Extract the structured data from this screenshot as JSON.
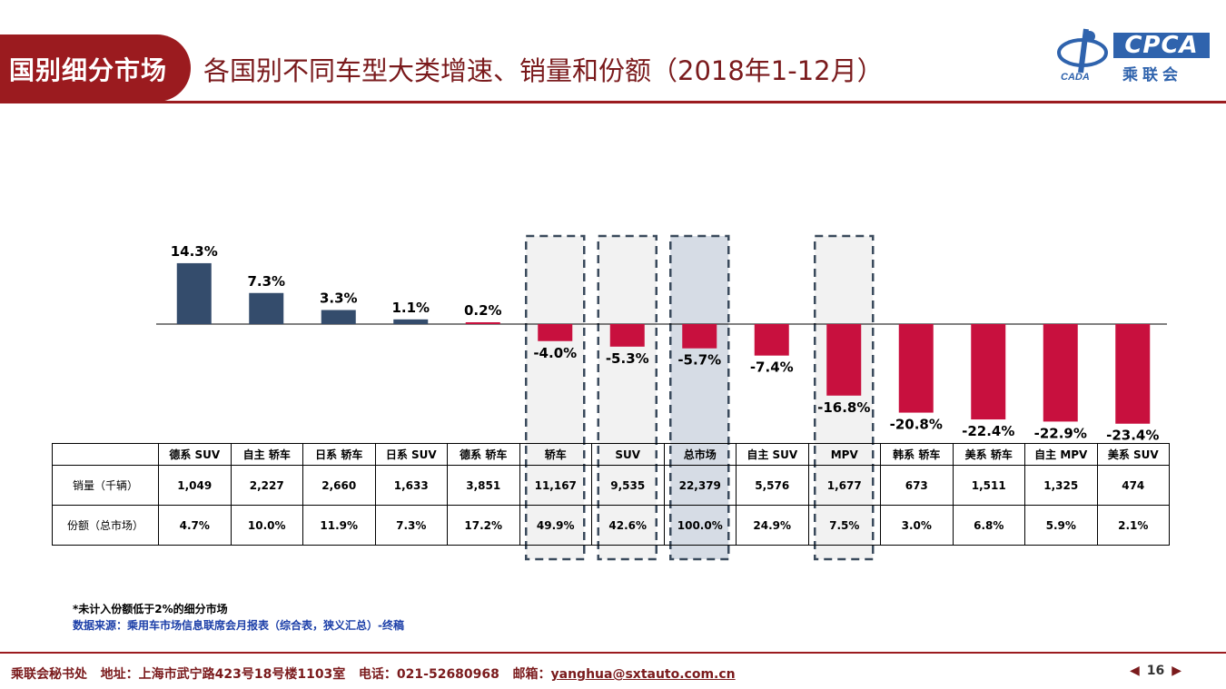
{
  "header": {
    "section_label": "国别细分市场",
    "title": "各国别不同车型大类增速、销量和份额（2018年1-12月）"
  },
  "logo": {
    "brand": "CPCA",
    "subtitle": "乘联会",
    "mark_text": "CADA"
  },
  "colors": {
    "accent": "#9b1b1f",
    "positive_bar": "#344c6c",
    "negative_bar": "#c8103e",
    "highlight_panel": "#f2f2f2",
    "highlight_panel_main": "#d6dce5"
  },
  "chart_data": {
    "type": "bar",
    "categories": [
      "德系 SUV",
      "自主 轿车",
      "日系 轿车",
      "日系 SUV",
      "德系 轿车",
      "轿车",
      "SUV",
      "总市场",
      "自主 SUV",
      "MPV",
      "韩系 轿车",
      "美系 轿车",
      "自主 MPV",
      "美系 SUV"
    ],
    "values": [
      14.3,
      7.3,
      3.3,
      1.1,
      0.2,
      -4.0,
      -5.3,
      -5.7,
      -7.4,
      -16.8,
      -20.8,
      -22.4,
      -22.9,
      -23.4
    ],
    "value_labels": [
      "14.3%",
      "7.3%",
      "3.3%",
      "1.1%",
      "0.2%",
      "-4.0%",
      "-5.3%",
      "-5.7%",
      "-7.4%",
      "-16.8%",
      "-20.8%",
      "-22.4%",
      "-22.9%",
      "-23.4%"
    ],
    "highlighted": [
      "轿车",
      "SUV",
      "总市场",
      "MPV"
    ],
    "ylim": [
      -24,
      16
    ]
  },
  "table": {
    "rows": [
      {
        "label": "销量（千辆）",
        "values": [
          "1,049",
          "2,227",
          "2,660",
          "1,633",
          "3,851",
          "11,167",
          "9,535",
          "22,379",
          "5,576",
          "1,677",
          "673",
          "1,511",
          "1,325",
          "474"
        ]
      },
      {
        "label": "份额（总市场）",
        "values": [
          "4.7%",
          "10.0%",
          "11.9%",
          "7.3%",
          "17.2%",
          "49.9%",
          "42.6%",
          "100.0%",
          "24.9%",
          "7.5%",
          "3.0%",
          "6.8%",
          "5.9%",
          "2.1%"
        ]
      }
    ]
  },
  "notes": {
    "footnote": "*未计入份额低于2%的细分市场",
    "source": "数据来源：乘用车市场信息联席会月报表（综合表，狭义汇总）-终稿"
  },
  "footer": {
    "org": "乘联会秘书处",
    "address": "地址：上海市武宁路423号18号楼1103室",
    "phone": "电话：021-52680968",
    "email_label": "邮箱：",
    "email": "yanghua@sxtauto.com.cn",
    "page": "16"
  }
}
